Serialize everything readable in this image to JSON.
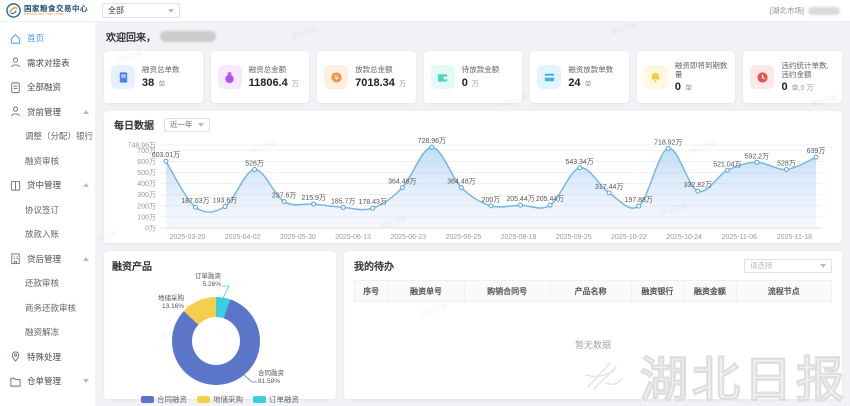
{
  "header": {
    "brand_cn": "国家粮食交易中心",
    "brand_en": "National Grain Trade Center",
    "market_select": "全部",
    "user_market": "[湖北市场]"
  },
  "sidebar": {
    "items": [
      {
        "label": "首页",
        "icon": "home-icon",
        "active": true
      },
      {
        "label": "需求对接表",
        "icon": "user-icon"
      },
      {
        "label": "全部融资",
        "icon": "doc-icon"
      },
      {
        "label": "贷前管理",
        "icon": "user-icon",
        "arrow": "up"
      },
      {
        "label": "调整（分配）银行",
        "child": true
      },
      {
        "label": "融资审核",
        "child": true
      },
      {
        "label": "贷中管理",
        "icon": "book-icon",
        "arrow": "up"
      },
      {
        "label": "协议签订",
        "child": true
      },
      {
        "label": "放款入账",
        "child": true
      },
      {
        "label": "贷后管理",
        "icon": "building-icon",
        "arrow": "up"
      },
      {
        "label": "还款审核",
        "child": true
      },
      {
        "label": "商务还款审核",
        "child": true
      },
      {
        "label": "融资解冻",
        "child": true
      },
      {
        "label": "特殊处理",
        "icon": "pin-icon"
      },
      {
        "label": "仓单管理",
        "icon": "folder-icon",
        "arrow": "down"
      }
    ]
  },
  "welcome": {
    "prefix": "欢迎回来，"
  },
  "stats": [
    {
      "title": "融资总单数",
      "value": "38",
      "unit": "单",
      "color": "#4d7df2",
      "bg": "#e8effd",
      "icon": "doc-icon"
    },
    {
      "title": "融资总金额",
      "value": "11806.4",
      "unit": "万",
      "color": "#b44fe8",
      "bg": "#f6e9fd",
      "icon": "money-icon"
    },
    {
      "title": "放款总金额",
      "value": "7018.34",
      "unit": "万",
      "color": "#f0954a",
      "bg": "#fdefe2",
      "icon": "coin-icon"
    },
    {
      "title": "待放款金额",
      "value": "0",
      "unit": "万",
      "color": "#4fd6c5",
      "bg": "#e3faf5",
      "icon": "wallet-icon"
    },
    {
      "title": "融资放款单数",
      "value": "24",
      "unit": "单",
      "color": "#3fb3f2",
      "bg": "#e3f4fd",
      "icon": "card-icon"
    },
    {
      "title": "融资即将到期数量",
      "value": "0",
      "unit": "单",
      "color": "#f2cf3f",
      "bg": "#fdf8e0",
      "icon": "bell-icon"
    },
    {
      "title": "违约统计单数,违约金额",
      "value": "0",
      "unit": "单,0 万",
      "color": "#e65555",
      "bg": "#fde8e8",
      "icon": "clock-icon"
    }
  ],
  "daily": {
    "title": "每日数据",
    "range": "近一年"
  },
  "chart_data": [
    {
      "type": "line",
      "title": "每日数据",
      "x_labels": [
        "2025-03-20",
        "2025-04-02",
        "2025-05-30",
        "2025-06-13",
        "2025-06-23",
        "2025-06-25",
        "2025-08-18",
        "2025-09-25",
        "2025-10-22",
        "2025-10-24",
        "2025-11-06",
        "2025-11-18"
      ],
      "values": [
        603.01,
        187.63,
        193.6,
        528,
        237.6,
        215.9,
        185.7,
        178.43,
        364.48,
        728.96,
        364.48,
        200,
        205.44,
        205.44,
        543.34,
        317.44,
        197.88,
        718.92,
        332.82,
        521.04,
        592.2,
        528,
        639
      ],
      "point_labels": [
        "603.01万",
        "187.63万",
        "193.6万",
        "528万",
        "237.6万",
        "215.9万",
        "185.7万",
        "178.43万",
        "364.48万",
        "728.96万",
        "364.48万",
        "200万",
        "205.44万",
        "205.44万",
        "543.34万",
        "317.44万",
        "197.88万",
        "718.92万",
        "332.82万",
        "521.04万",
        "592.2万",
        "528万",
        "639万"
      ],
      "y_tick_labels": [
        "748.96万",
        "700万",
        "600万",
        "500万",
        "400万",
        "300万",
        "200万",
        "100万",
        "0万"
      ],
      "y_tick_values": [
        748.96,
        700,
        600,
        500,
        400,
        300,
        200,
        100,
        0
      ],
      "ylim": [
        0,
        748.96
      ],
      "area": true,
      "line_color": "#74b9e6",
      "grid": true,
      "legend_position": "none"
    },
    {
      "type": "pie",
      "title": "融资产品",
      "labels": [
        "合同融资",
        "地储采购",
        "订单融资"
      ],
      "values": [
        81.58,
        13.16,
        5.26
      ],
      "pct_labels": [
        "81.58%",
        "13.16%",
        "5.26%"
      ],
      "colors": [
        "#5b76c9",
        "#f5ce4d",
        "#38cfe0"
      ],
      "legend_position": "bottom"
    }
  ],
  "products": {
    "title": "融资产品"
  },
  "todo": {
    "title": "我的待办",
    "select_placeholder": "请选择",
    "columns": [
      "序号",
      "融资单号",
      "购销合同号",
      "产品名称",
      "融资银行",
      "融资金额",
      "流程节点"
    ],
    "empty": "暂无数据"
  },
  "watermark": {
    "main": "湖北日报",
    "tile": "湖北日报"
  }
}
